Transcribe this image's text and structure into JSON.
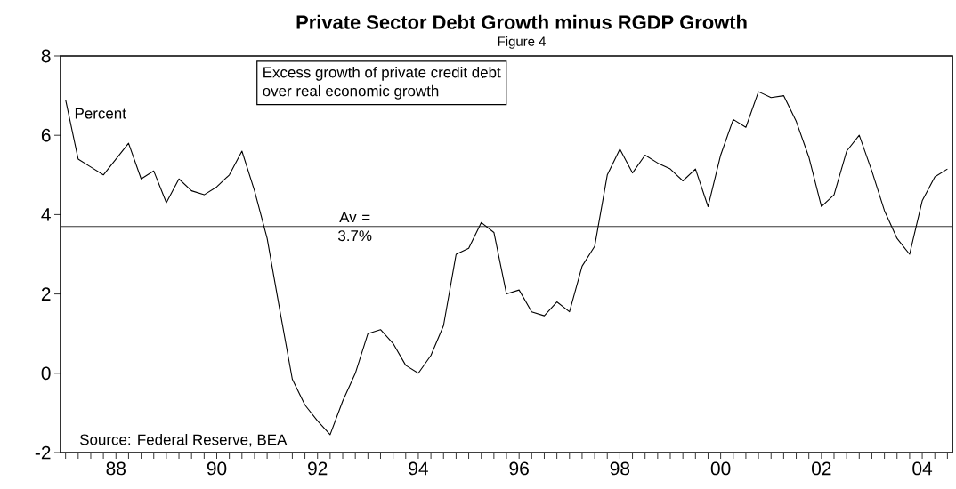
{
  "chart_data": {
    "type": "line",
    "title": "Private Sector Debt Growth minus RGDP Growth",
    "subtitle": "Figure 4",
    "ylabel": "Percent",
    "annotations": [
      "Excess growth of private credit debt over real economic growth",
      "Source: Federal Reserve, BEA"
    ],
    "categories": [
      null,
      null,
      null,
      null,
      "88",
      null,
      null,
      null,
      null,
      null,
      null,
      null,
      "90",
      null,
      null,
      null,
      null,
      null,
      null,
      null,
      "92",
      null,
      null,
      null,
      null,
      null,
      null,
      null,
      "94",
      null,
      null,
      null,
      null,
      null,
      null,
      null,
      "96",
      null,
      null,
      null,
      null,
      null,
      null,
      null,
      "98",
      null,
      null,
      null,
      null,
      null,
      null,
      null,
      "00",
      null,
      null,
      null,
      null,
      null,
      null,
      null,
      "02",
      null,
      null,
      null,
      null,
      null,
      null,
      null,
      "04",
      null,
      null
    ],
    "values": [
      6.9,
      5.4,
      5.2,
      5.0,
      5.4,
      5.8,
      4.9,
      5.1,
      4.3,
      4.9,
      4.6,
      4.5,
      4.7,
      5.0,
      5.6,
      4.6,
      3.4,
      1.6,
      -0.15,
      -0.8,
      -1.2,
      -1.55,
      -0.7,
      0.0,
      1.0,
      1.1,
      0.75,
      0.2,
      0.0,
      0.45,
      1.2,
      3.0,
      3.15,
      3.8,
      3.55,
      2.0,
      2.1,
      1.55,
      1.45,
      1.8,
      1.55,
      2.7,
      3.2,
      5.0,
      5.65,
      5.05,
      5.5,
      5.3,
      5.15,
      4.85,
      5.15,
      4.2,
      5.5,
      6.4,
      6.2,
      7.1,
      6.95,
      7.0,
      6.35,
      5.45,
      4.2,
      4.5,
      5.6,
      6.0,
      5.1,
      4.1,
      3.4,
      3.0,
      4.35,
      4.95,
      5.15
    ],
    "color": "#000000",
    "marker": "none",
    "line_style": "solid",
    "ylim": [
      -2,
      8
    ],
    "yticks": [
      -2,
      0,
      2,
      4,
      6,
      8
    ],
    "ref_lines": [
      {
        "axis": "y",
        "value": 3.7,
        "label": "Av = 3.7%",
        "color": "#000000"
      }
    ]
  }
}
